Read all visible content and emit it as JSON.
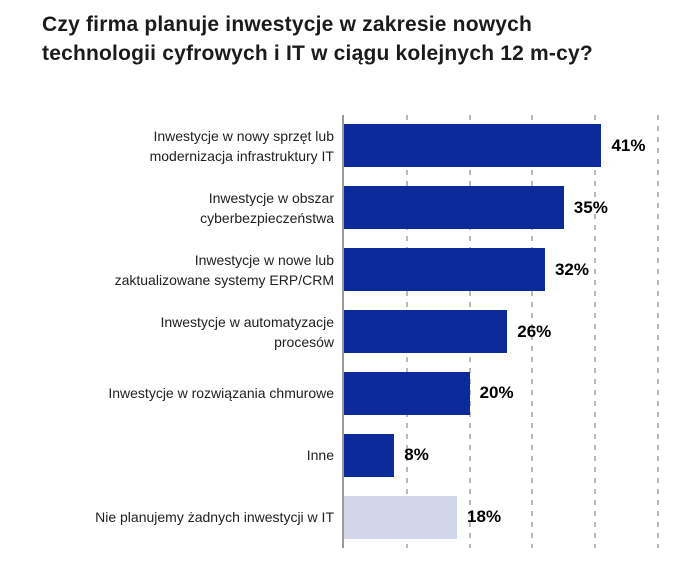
{
  "title": "Czy firma planuje inwestycje w zakresie nowych technologii cyfrowych i IT w ciągu kolejnych 12 m-cy?",
  "colors": {
    "bar_primary": "#0c2a99",
    "bar_muted": "#d1d6ea",
    "axis_line": "#9a9a9a",
    "gridline": "#b9b9b9",
    "title_text": "#1b1b1b",
    "label_text": "#212121",
    "value_text": "#000000"
  },
  "chart_data": {
    "type": "bar",
    "orientation": "horizontal",
    "title": "Czy firma planuje inwestycje w zakresie nowych technologii cyfrowych i IT w ciągu kolejnych 12 m-cy?",
    "categories": [
      "Inwestycje w nowy sprzęt lub modernizacja infrastruktury IT",
      "Inwestycje w obszar cyberbezpieczeństwa",
      "Inwestycje w nowe lub zaktualizowane systemy ERP/CRM",
      "Inwestycje w automatyzacje procesów",
      "Inwestycje w rozwiązania chmurowe",
      "Inne",
      "Nie planujemy żadnych inwestycji w IT"
    ],
    "label_lines": [
      [
        "Inwestycje w nowy sprzęt lub",
        "modernizacja infrastruktury IT"
      ],
      [
        "Inwestycje w obszar",
        "cyberbezpieczeństwa"
      ],
      [
        "Inwestycje w nowe lub",
        "zaktualizowane systemy ERP/CRM"
      ],
      [
        "Inwestycje w automatyzacje",
        "procesów"
      ],
      [
        "Inwestycje w rozwiązania chmurowe"
      ],
      [
        "Inne"
      ],
      [
        "Nie planujemy żadnych inwestycji w IT"
      ]
    ],
    "values": [
      41,
      35,
      32,
      26,
      20,
      8,
      18
    ],
    "value_labels": [
      "41%",
      "35%",
      "32%",
      "26%",
      "20%",
      "8%",
      "18%"
    ],
    "color_keys": [
      "primary",
      "primary",
      "primary",
      "primary",
      "primary",
      "primary",
      "muted"
    ],
    "xlabel": "",
    "ylabel": "",
    "xlim": [
      0,
      50
    ],
    "gridline_step": 10,
    "grid": true,
    "legend": false,
    "value_label_position": "outside-end"
  }
}
